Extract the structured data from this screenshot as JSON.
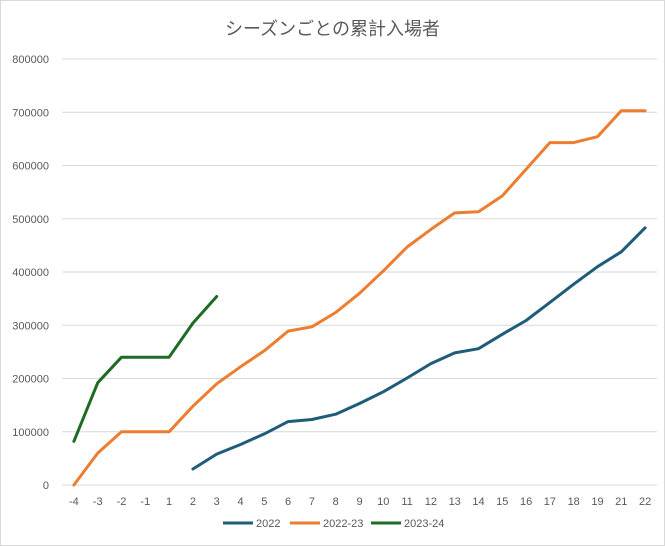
{
  "chart_data": {
    "type": "line",
    "title": "シーズンごとの累計入場者",
    "xlabel": "",
    "ylabel": "",
    "categories": [
      "-4",
      "-3",
      "-2",
      "-1",
      "1",
      "2",
      "3",
      "4",
      "5",
      "6",
      "7",
      "8",
      "9",
      "10",
      "11",
      "12",
      "13",
      "14",
      "15",
      "16",
      "17",
      "18",
      "19",
      "21",
      "22"
    ],
    "ylim": [
      0,
      800000
    ],
    "yticks": [
      "0",
      "100000",
      "200000",
      "300000",
      "400000",
      "500000",
      "600000",
      "700000",
      "800000"
    ],
    "grid": true,
    "legend_position": "bottom",
    "series": [
      {
        "name": "2022",
        "color": "#1f5c7a",
        "values": [
          null,
          null,
          null,
          null,
          null,
          30000,
          58000,
          76000,
          96000,
          119000,
          123000,
          133000,
          153000,
          175000,
          201000,
          228000,
          248000,
          256000,
          283000,
          309000,
          343000,
          377000,
          410000,
          438000,
          483000
        ]
      },
      {
        "name": "2022-23",
        "color": "#ed7d31",
        "values": [
          0,
          60000,
          100000,
          100000,
          100000,
          148000,
          190000,
          222000,
          252000,
          289000,
          297000,
          324000,
          360000,
          402000,
          447000,
          480000,
          511000,
          513000,
          543000,
          593000,
          643000,
          643000,
          654000,
          703000,
          703000
        ]
      },
      {
        "name": "2023-24",
        "color": "#1e6b22",
        "values": [
          82000,
          192000,
          240000,
          240000,
          240000,
          304000,
          354000,
          null,
          null,
          null,
          null,
          null,
          null,
          null,
          null,
          null,
          null,
          null,
          null,
          null,
          null,
          null,
          null,
          null,
          null
        ]
      }
    ]
  }
}
